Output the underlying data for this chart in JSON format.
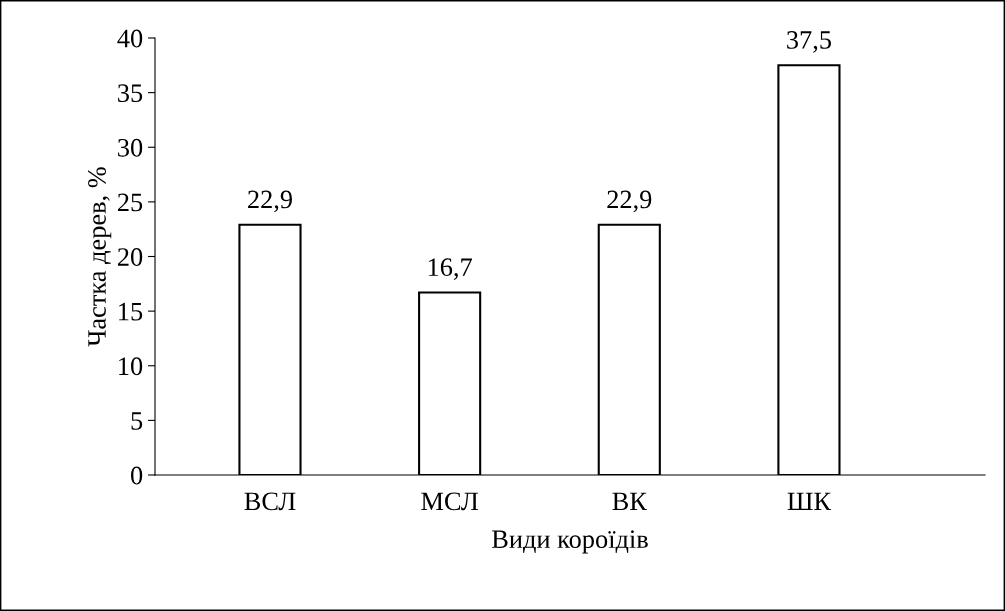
{
  "chart_data": {
    "type": "bar",
    "xlabel": "Види короїдів",
    "ylabel": "Частка дерев, %",
    "categories": [
      "ВСЛ",
      "МСЛ",
      "ВК",
      "ШК"
    ],
    "values": [
      22.9,
      16.7,
      22.9,
      37.5
    ],
    "value_labels": [
      "22,9",
      "16,7",
      "22,9",
      "37,5"
    ],
    "color": "#ffffff",
    "ylim": [
      0,
      40
    ],
    "yticks": [
      0,
      5,
      10,
      15,
      20,
      25,
      30,
      35,
      40
    ],
    "grid": false,
    "legend": false
  }
}
